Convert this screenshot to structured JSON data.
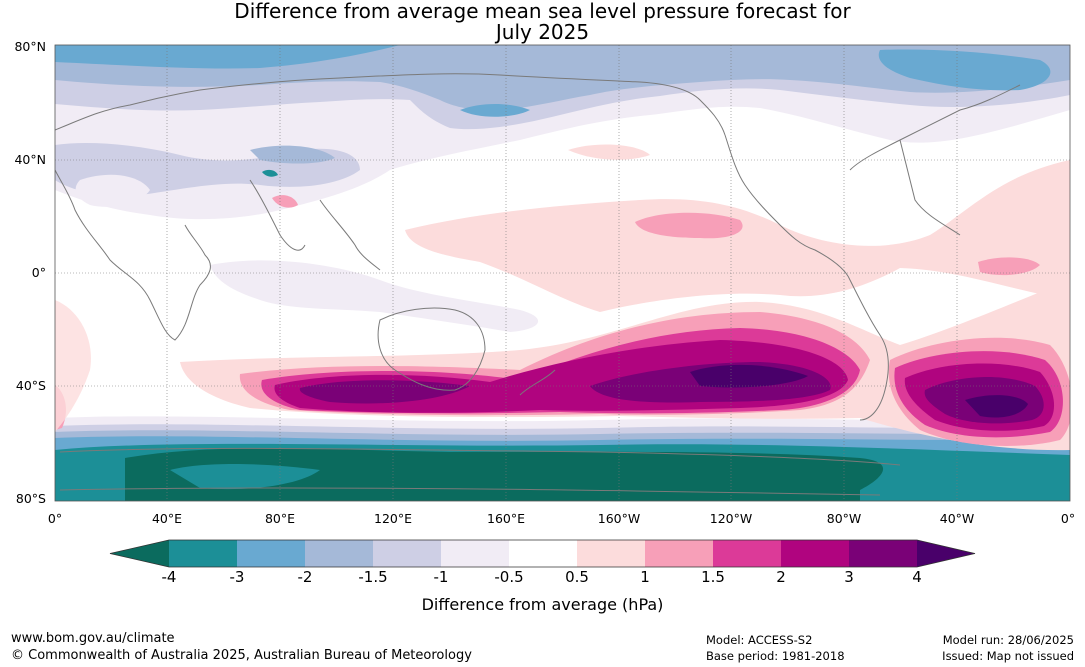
{
  "title_line1": "Difference from average mean sea level pressure forecast for",
  "title_line2": "July 2025",
  "lat_labels": [
    "80°N",
    "40°N",
    "0°",
    "40°S",
    "80°S"
  ],
  "lon_labels": [
    "0°",
    "40°E",
    "80°E",
    "120°E",
    "160°E",
    "160°W",
    "120°W",
    "80°W",
    "40°W",
    "0°"
  ],
  "colorbar": {
    "label": "Difference from average (hPa)",
    "ticks": [
      "-4",
      "-3",
      "-2",
      "-1.5",
      "-1",
      "-0.5",
      "0.5",
      "1",
      "1.5",
      "2",
      "3",
      "4"
    ],
    "colors": [
      "#0b6b5e",
      "#1c8f97",
      "#69a9d1",
      "#a5b9d8",
      "#cecfe5",
      "#f1ecf5",
      "#ffffff",
      "#fcdcdc",
      "#f79fb8",
      "#dc3a98",
      "#b0047f",
      "#7a0177",
      "#49006a"
    ]
  },
  "footer": {
    "website": "www.bom.gov.au/climate",
    "copyright": "© Commonwealth of Australia 2025, Australian Bureau of Meteorology",
    "model": "Model: ACCESS-S2",
    "base_period": "Base period: 1981-2018",
    "model_run": "Model run: 28/06/2025",
    "issued": "Issued: Map not issued"
  }
}
